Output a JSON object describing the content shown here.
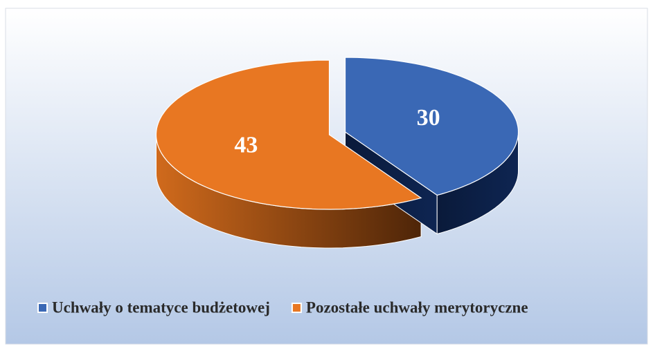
{
  "chart_data": {
    "type": "pie",
    "categories": [
      "Uchwały o tematyce budżetowej",
      "Pozostałe uchwały merytoryczne"
    ],
    "values": [
      30,
      43
    ],
    "colors": [
      "#3a68b5",
      "#e87722"
    ],
    "legend": "bottom"
  }
}
